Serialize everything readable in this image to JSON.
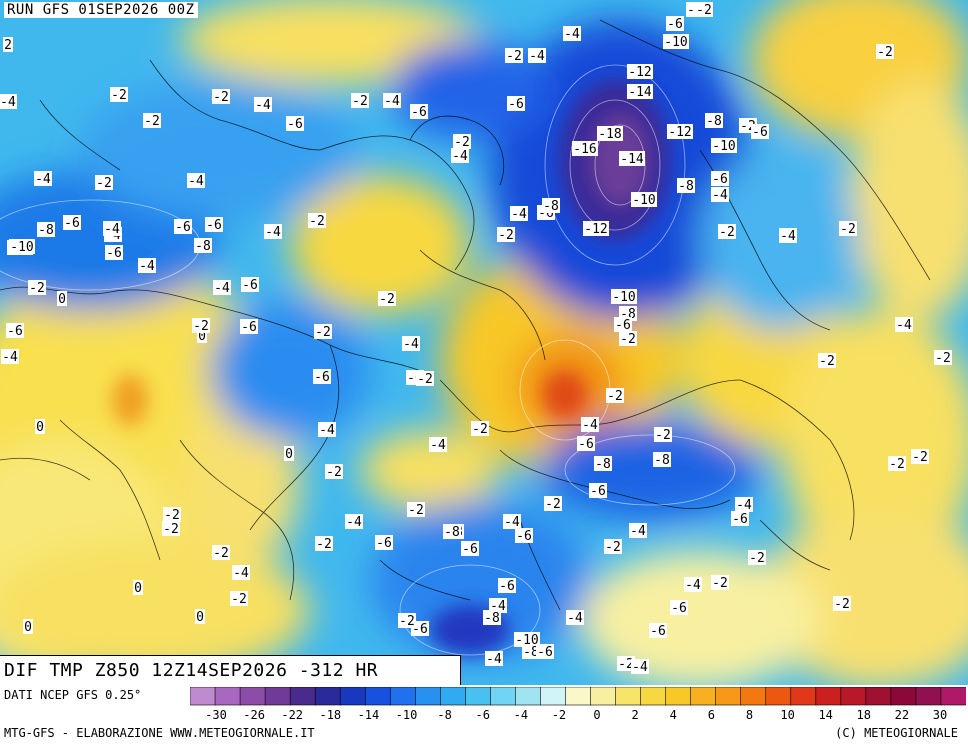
{
  "header": {
    "run_label": "RUN GFS 01SEP2026 00Z"
  },
  "title": {
    "text": "DIF TMP Z850 12Z14SEP2026 -312 HR"
  },
  "footer": {
    "source": "DATI NCEP GFS 0.25°",
    "credit_left": "MTG-GFS - ELABORAZIONE WWW.METEOGIORNALE.IT",
    "credit_right": "(C) METEOGIORNALE"
  },
  "colorbar": {
    "colors": [
      "#c08ad0",
      "#a868c0",
      "#8c4ca8",
      "#703a98",
      "#4a2a8a",
      "#2a2a9a",
      "#1838c0",
      "#1850e0",
      "#2070f0",
      "#2890f0",
      "#30aaf0",
      "#48c0f0",
      "#70d4f4",
      "#a0e4f4",
      "#d0f4f8",
      "#f8f8c8",
      "#f8f0a0",
      "#f8e468",
      "#f8d840",
      "#f8c828",
      "#f8b020",
      "#f89818",
      "#f47810",
      "#ec5810",
      "#e03818",
      "#cc2020",
      "#b81828",
      "#a01030",
      "#8c0838",
      "#901050",
      "#b01868"
    ],
    "tick_labels": [
      "-30",
      "-26",
      "-22",
      "-18",
      "-14",
      "-10",
      "-8",
      "-6",
      "-4",
      "-2",
      "0",
      "2",
      "4",
      "6",
      "8",
      "10",
      "14",
      "18",
      "22",
      "30"
    ]
  },
  "map": {
    "contour_labels": [
      {
        "v": "-2"
      },
      {
        "v": "-4"
      },
      {
        "v": "-2"
      },
      {
        "v": "-4"
      },
      {
        "v": "-2"
      },
      {
        "v": "-2"
      },
      {
        "v": "-6"
      },
      {
        "v": "-10"
      },
      {
        "v": "-12"
      },
      {
        "v": "-14"
      },
      {
        "v": "-18"
      },
      {
        "v": "-16"
      },
      {
        "v": "-14"
      },
      {
        "v": "-12"
      },
      {
        "v": "-8"
      },
      {
        "v": "-2"
      },
      {
        "v": "-6"
      },
      {
        "v": "-10"
      },
      {
        "v": "-8"
      },
      {
        "v": "-6"
      },
      {
        "v": "-4"
      },
      {
        "v": "-10"
      },
      {
        "v": "-12"
      },
      {
        "v": "-4"
      },
      {
        "v": "-6"
      },
      {
        "v": "-8"
      },
      {
        "v": "-2"
      },
      {
        "v": "-2"
      },
      {
        "v": "-4"
      },
      {
        "v": "-2"
      },
      {
        "v": "-10"
      },
      {
        "v": "-8"
      },
      {
        "v": "-6"
      },
      {
        "v": "-2"
      },
      {
        "v": "-6"
      },
      {
        "v": "-6"
      },
      {
        "v": "-2"
      },
      {
        "v": "-4"
      },
      {
        "v": "-2"
      },
      {
        "v": "-4"
      },
      {
        "v": "-2"
      },
      {
        "v": "-6"
      },
      {
        "v": "-2"
      },
      {
        "v": "-4"
      },
      {
        "v": "-6"
      },
      {
        "v": "-6"
      },
      {
        "v": "-4"
      },
      {
        "v": "-4"
      },
      {
        "v": "-2"
      },
      {
        "v": "-4"
      },
      {
        "v": "-2"
      },
      {
        "v": "-8"
      },
      {
        "v": "-6"
      },
      {
        "v": "-6"
      },
      {
        "v": "-2"
      },
      {
        "v": "-6"
      },
      {
        "v": "-4"
      },
      {
        "v": "-6"
      },
      {
        "v": "-8"
      },
      {
        "v": "-4"
      },
      {
        "v": "-10"
      },
      {
        "v": "-6"
      },
      {
        "v": "-4"
      },
      {
        "v": "0"
      },
      {
        "v": "-2"
      },
      {
        "v": "-4"
      },
      {
        "v": "-6"
      },
      {
        "v": "0"
      },
      {
        "v": "-6"
      },
      {
        "v": "-2"
      },
      {
        "v": "-4"
      },
      {
        "v": "-2"
      },
      {
        "v": "-2"
      },
      {
        "v": "-6"
      },
      {
        "v": "-2"
      },
      {
        "v": "-4"
      },
      {
        "v": "-2"
      },
      {
        "v": "-2"
      },
      {
        "v": "-4"
      },
      {
        "v": "-2"
      },
      {
        "v": "0"
      },
      {
        "v": "-4"
      },
      {
        "v": "0"
      },
      {
        "v": "-2"
      },
      {
        "v": "-2"
      },
      {
        "v": "-4"
      },
      {
        "v": "-2"
      },
      {
        "v": "-8"
      },
      {
        "v": "-6"
      },
      {
        "v": "-8"
      },
      {
        "v": "-2"
      },
      {
        "v": "-2"
      },
      {
        "v": "-2"
      },
      {
        "v": "-4"
      },
      {
        "v": "-2"
      },
      {
        "v": "-8"
      },
      {
        "v": "-4"
      },
      {
        "v": "-6"
      },
      {
        "v": "-4"
      },
      {
        "v": "-6"
      },
      {
        "v": "-6"
      },
      {
        "v": "-8"
      },
      {
        "v": "-6"
      },
      {
        "v": "-4"
      },
      {
        "v": "-2"
      },
      {
        "v": "-2"
      },
      {
        "v": "-2"
      },
      {
        "v": "-4"
      },
      {
        "v": "-2"
      },
      {
        "v": "-4"
      },
      {
        "v": "-6"
      },
      {
        "v": "-4"
      },
      {
        "v": "-6"
      },
      {
        "v": "-4"
      },
      {
        "v": "-2"
      },
      {
        "v": "-2"
      },
      {
        "v": "0"
      },
      {
        "v": "-2"
      },
      {
        "v": "-2"
      },
      {
        "v": "0"
      },
      {
        "v": "0"
      },
      {
        "v": "-2"
      },
      {
        "v": "-2"
      },
      {
        "v": "-4"
      },
      {
        "v": "-6"
      },
      {
        "v": "-6"
      },
      {
        "v": "-8"
      },
      {
        "v": "-10"
      },
      {
        "v": "-8"
      },
      {
        "v": "-6"
      },
      {
        "v": "-4"
      },
      {
        "v": "-2"
      },
      {
        "v": "-4"
      },
      {
        "v": "2"
      },
      {
        "v": "-4"
      },
      {
        "v": "-10"
      }
    ]
  }
}
